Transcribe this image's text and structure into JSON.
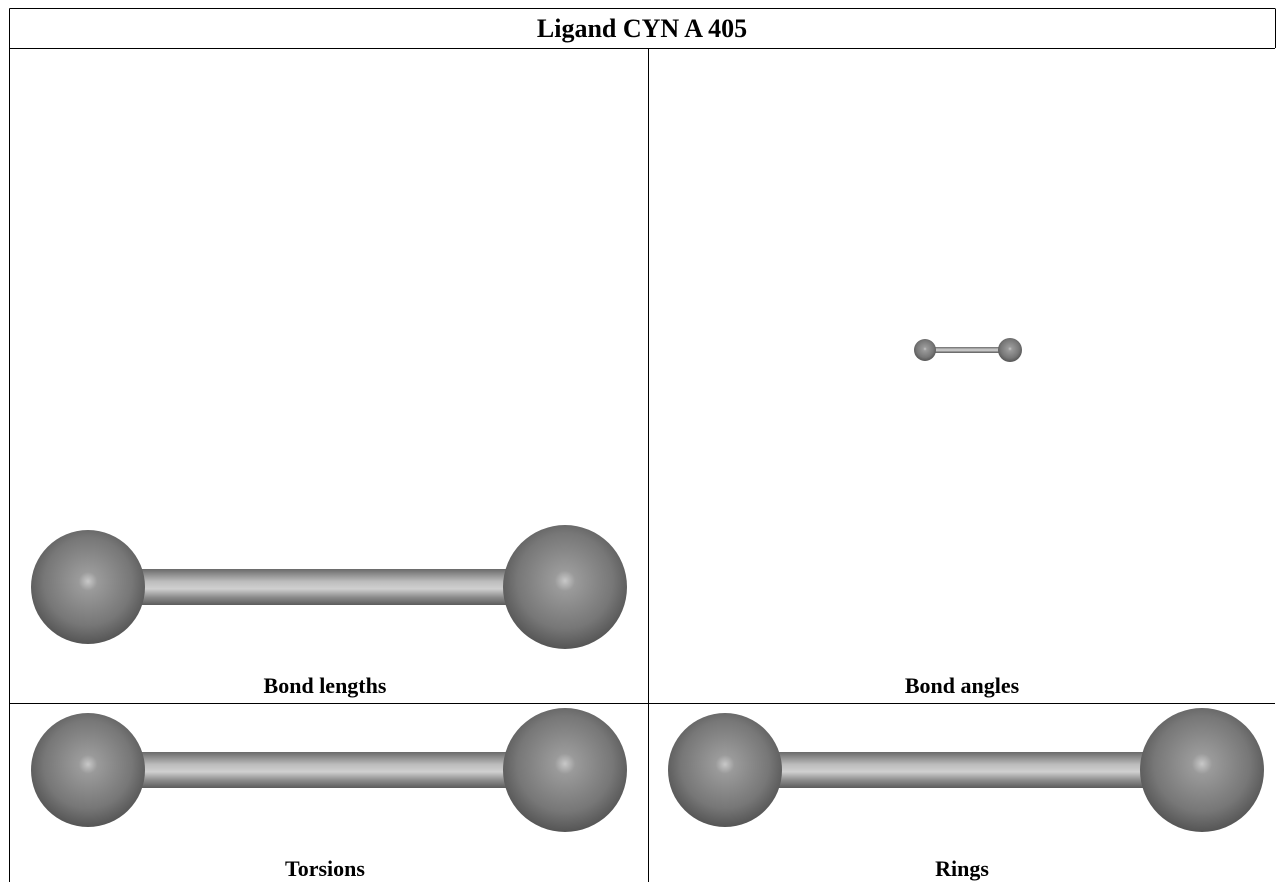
{
  "header": {
    "title": "Ligand CYN A 405"
  },
  "panels": [
    {
      "caption": "Bond lengths"
    },
    {
      "caption": "Bond angles"
    },
    {
      "caption": "Torsions"
    },
    {
      "caption": "Rings"
    }
  ]
}
